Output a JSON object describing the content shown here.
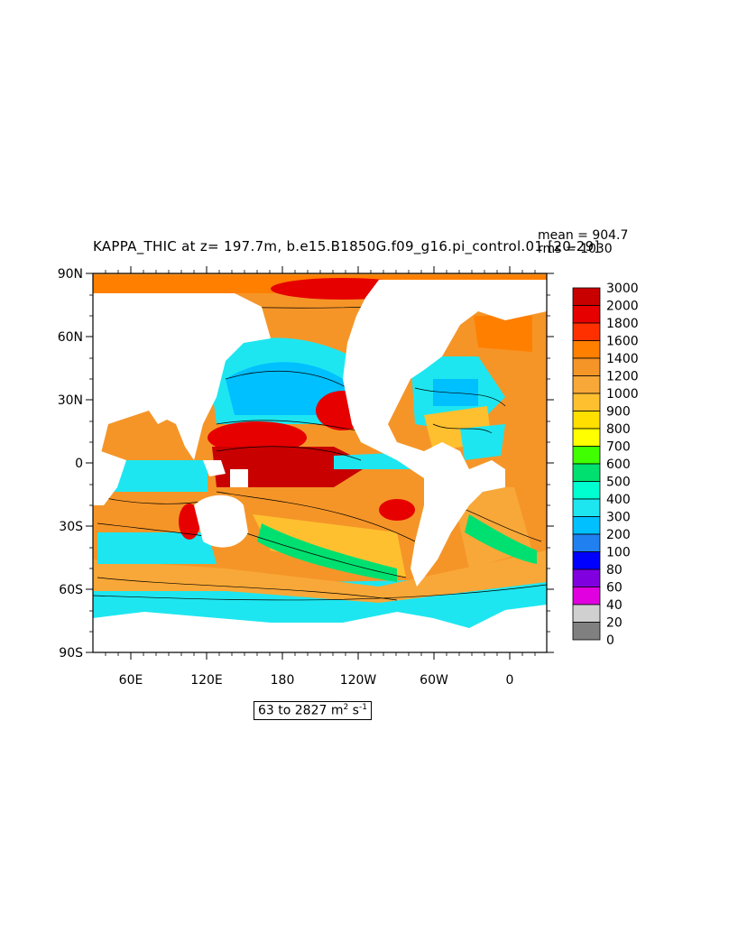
{
  "title": "KAPPA_THIC at z= 197.7m, b.e15.B1850G.f09_g16.pi_control.01 [20-29]",
  "stats": {
    "mean_label": "mean = 904.7",
    "rms_label": "rms = 1030"
  },
  "range": {
    "text": "63 to 2827 m",
    "unit_exp": "2",
    "unit_mid": " s",
    "unit_exp2": "-1"
  },
  "lat_labels": [
    "90N",
    "60N",
    "30N",
    "0",
    "30S",
    "60S",
    "90S"
  ],
  "lon_labels": [
    "60E",
    "120E",
    "180",
    "120W",
    "60W",
    "0"
  ],
  "colorbar": {
    "labels": [
      "3000",
      "2000",
      "1800",
      "1600",
      "1400",
      "1200",
      "1000",
      "900",
      "800",
      "700",
      "600",
      "500",
      "400",
      "300",
      "200",
      "100",
      "80",
      "60",
      "40",
      "20",
      "0"
    ],
    "colors": [
      "#c80000",
      "#e60000",
      "#ff3000",
      "#ff7f00",
      "#f59528",
      "#f8a838",
      "#ffc030",
      "#ffdf00",
      "#ffff00",
      "#3fff00",
      "#00e070",
      "#00ffd0",
      "#1ee6f0",
      "#00c0ff",
      "#2080f0",
      "#0000ff",
      "#8000e0",
      "#e000e0",
      "#d0d0d0",
      "#808080"
    ]
  },
  "chart_data": {
    "type": "heatmap",
    "variable": "KAPPA_THIC",
    "depth": "197.7m",
    "mean": 904.7,
    "rms": 1030,
    "min": 63,
    "max": 2827,
    "units": "m2 s-1",
    "lat_range": [
      -90,
      90
    ],
    "lon_range": [
      20,
      380
    ],
    "contour_levels": [
      0,
      20,
      40,
      60,
      80,
      100,
      200,
      300,
      400,
      500,
      600,
      700,
      800,
      900,
      1000,
      1200,
      1400,
      1600,
      1800,
      2000,
      3000
    ]
  },
  "colors": {
    "land": "#ffffff",
    "frame": "#000000"
  }
}
